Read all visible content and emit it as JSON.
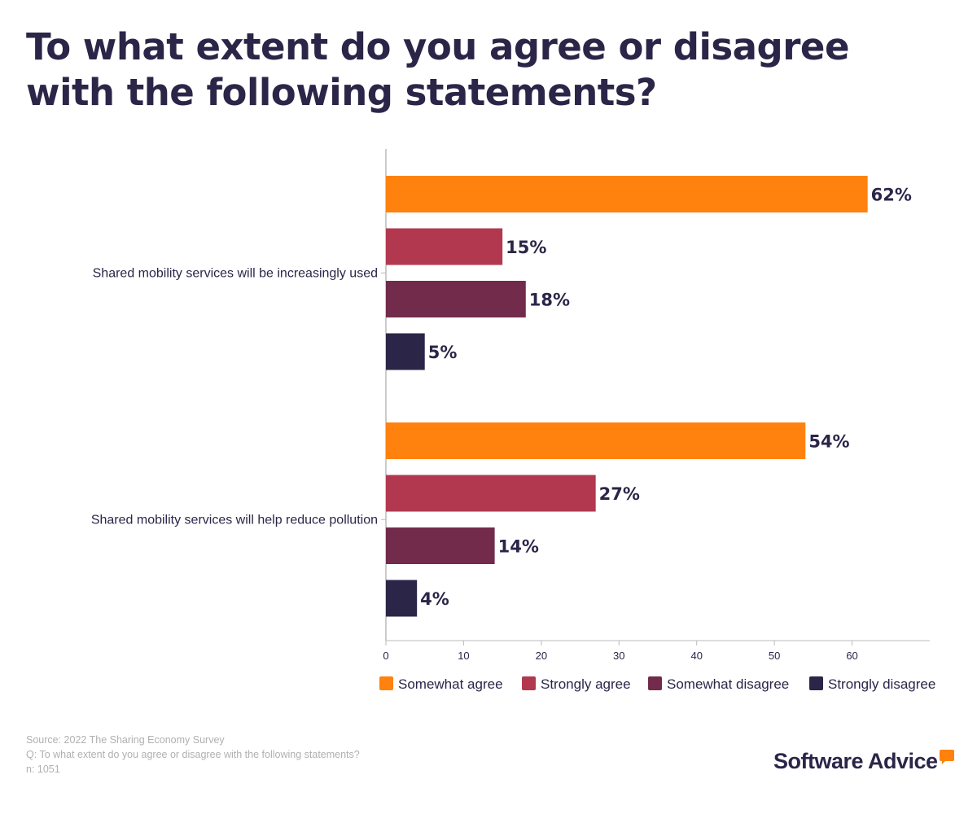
{
  "chart_data": {
    "type": "bar",
    "orientation": "horizontal",
    "title": "To what extent do you agree or disagree with the following statements?",
    "categories": [
      "Shared mobility services will be increasingly used",
      "Shared mobility services will help reduce pollution"
    ],
    "series": [
      {
        "name": "Somewhat agree",
        "color": "#ff820f",
        "values": [
          62,
          54
        ]
      },
      {
        "name": "Strongly agree",
        "color": "#b23850",
        "values": [
          15,
          27
        ]
      },
      {
        "name": "Somewhat disagree",
        "color": "#722b4b",
        "values": [
          18,
          14
        ]
      },
      {
        "name": "Strongly disagree",
        "color": "#2b2548",
        "values": [
          5,
          4
        ]
      }
    ],
    "data_labels": [
      [
        "62%",
        "15%",
        "18%",
        "5%"
      ],
      [
        "54%",
        "27%",
        "14%",
        "4%"
      ]
    ],
    "xticks": [
      0,
      10,
      20,
      30,
      40,
      50,
      60
    ],
    "xlim": [
      0,
      70
    ],
    "grid": false,
    "legend_placement": "bottom"
  },
  "footer": {
    "source": "Source: 2022 The Sharing Economy Survey",
    "question": "Q: To what extent do you agree or disagree with the following statements?",
    "n": "n: 1051"
  },
  "logo": "Software Advice"
}
